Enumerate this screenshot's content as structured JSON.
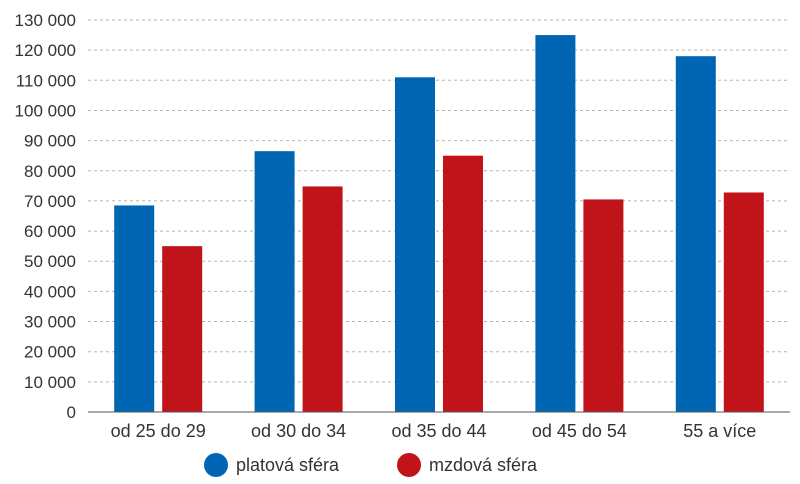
{
  "chart_data": {
    "type": "bar",
    "title": "",
    "xlabel": "",
    "ylabel": "",
    "categories": [
      "od 25 do 29",
      "od 30 do 34",
      "od 35 do 44",
      "od 45 do 54",
      "55 a více"
    ],
    "series": [
      {
        "name": "platová sféra",
        "color": "#0066b3",
        "values": [
          68500,
          86500,
          111000,
          125000,
          118000
        ]
      },
      {
        "name": "mzdová sféra",
        "color": "#c0141a",
        "values": [
          55000,
          74800,
          85000,
          70500,
          72800
        ]
      }
    ],
    "ylim": [
      0,
      130000
    ],
    "yticks": [
      0,
      10000,
      20000,
      30000,
      40000,
      50000,
      60000,
      70000,
      80000,
      90000,
      100000,
      110000,
      120000,
      130000
    ],
    "ytick_labels": [
      "0",
      "10 000",
      "20 000",
      "30 000",
      "40 000",
      "50 000",
      "60 000",
      "70 000",
      "80 000",
      "90 000",
      "100 000",
      "110 000",
      "120 000",
      "130 000"
    ],
    "grid": true,
    "legend_position": "bottom"
  }
}
